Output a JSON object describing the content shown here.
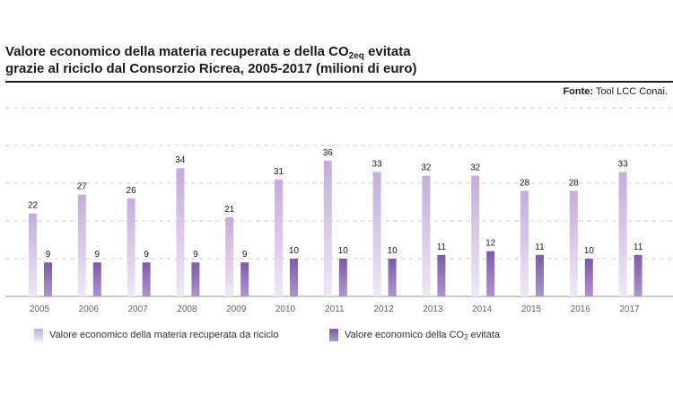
{
  "header": {
    "title_line1_a": "Valore economico della materia recuperata e della CO",
    "title_line1_sub": "2eq",
    "title_line1_b": " evitata",
    "title_line2": "grazie al riciclo dal Consorzio Ricrea, 2005-2017 (milioni di euro)",
    "source_label": "Fonte:",
    "source_text": " Tool LCC Conai."
  },
  "legend": {
    "series1": "Valore economico della materia recuperata da riciclo",
    "series2_a": "Valore economico della CO",
    "series2_sub": "2",
    "series2_b": " evitata"
  },
  "colors": {
    "light_top": "#c3addb",
    "light_bottom": "#efe8f6",
    "dark_top": "#7d5aa8",
    "dark_bottom": "#ae95cc",
    "grid": "#cfcfcf",
    "axis": "#999999"
  },
  "chart_data": {
    "type": "bar",
    "title": "Valore economico della materia recuperata e della CO2eq evitata grazie al riciclo dal Consorzio Ricrea, 2005-2017 (milioni di euro)",
    "xlabel": "",
    "ylabel": "",
    "ylim": [
      0,
      50
    ],
    "grid": true,
    "legend_position": "bottom-left",
    "categories": [
      "2005",
      "2006",
      "2007",
      "2008",
      "2009",
      "2010",
      "2011",
      "2012",
      "2013",
      "2014",
      "2015",
      "2016",
      "2017"
    ],
    "series": [
      {
        "name": "Valore economico della materia recuperata da riciclo",
        "values": [
          22,
          27,
          26,
          34,
          21,
          31,
          36,
          33,
          32,
          32,
          28,
          28,
          33
        ]
      },
      {
        "name": "Valore economico della CO2 evitata",
        "values": [
          9,
          9,
          9,
          9,
          9,
          10,
          10,
          10,
          11,
          12,
          11,
          10,
          11
        ]
      }
    ]
  }
}
